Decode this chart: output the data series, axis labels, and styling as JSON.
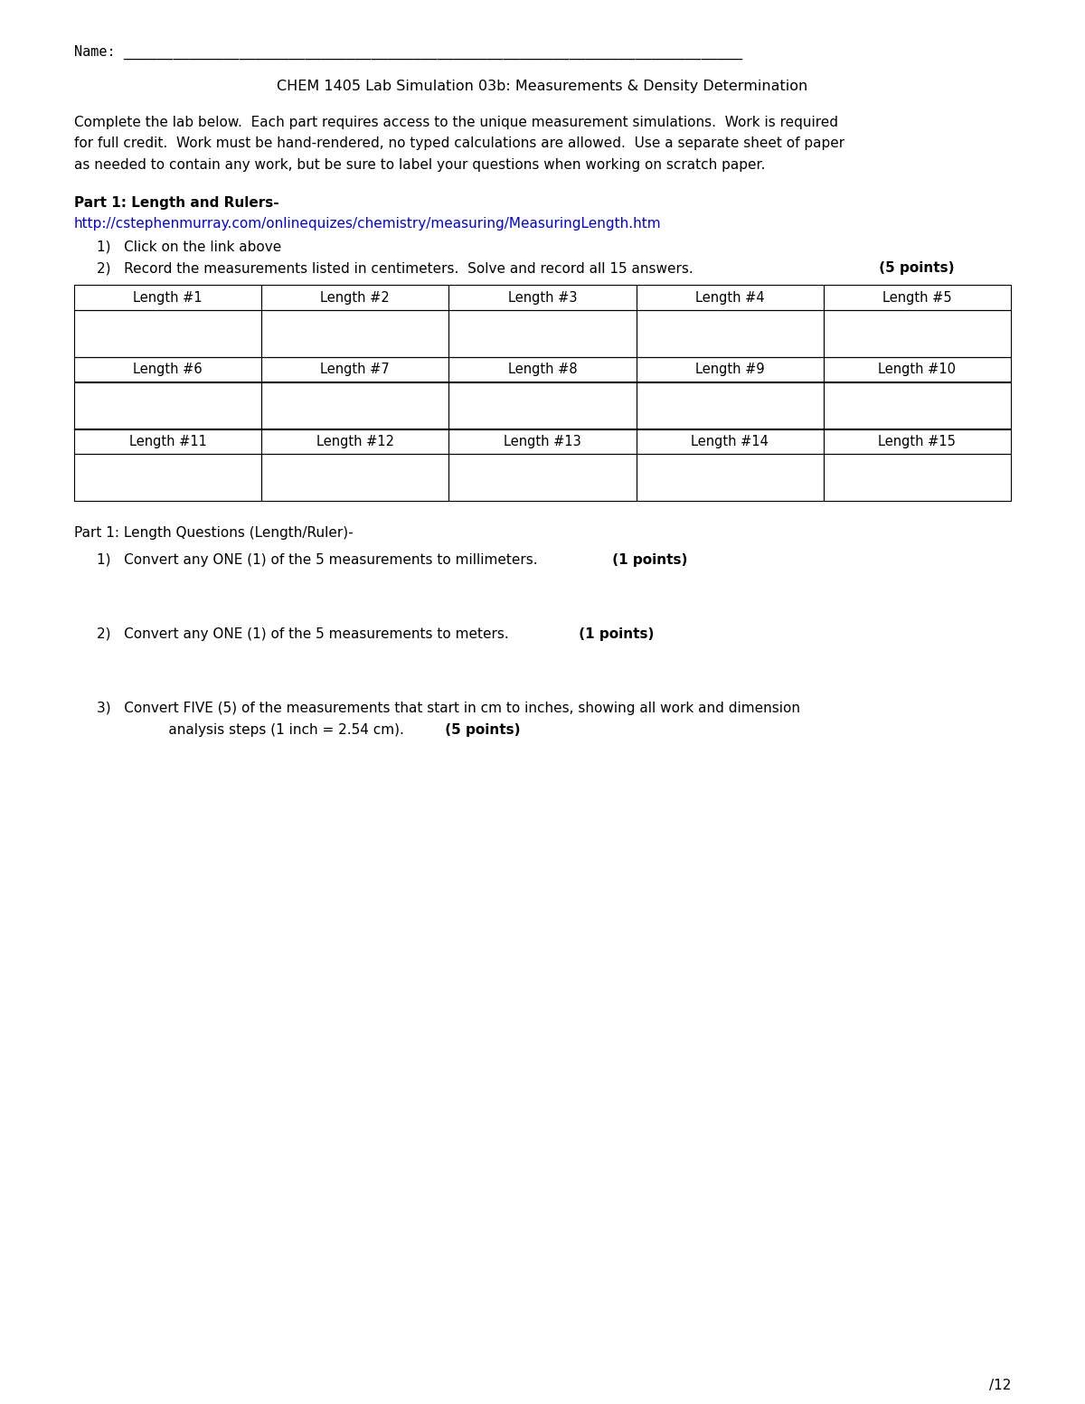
{
  "bg_color": "#ffffff",
  "title": "CHEM 1405 Lab Simulation 03b: Measurements & Density Determination",
  "name_label": "Name: ",
  "name_underline": "_______________________________________________________________________________________________________________",
  "intro_lines": [
    "Complete the lab below.  Each part requires access to the unique measurement simulations.  Work is required",
    "for full credit.  Work must be hand-rendered, no typed calculations are allowed.  Use a separate sheet of paper",
    "as needed to contain any work, but be sure to label your questions when working on scratch paper."
  ],
  "part1_header": "Part 1: Length and Rulers-",
  "part1_link": "http://cstephenmurray.com/onlinequizes/chemistry/measuring/MeasuringLength.htm",
  "instr1": "1)   Click on the link above",
  "instr2_normal": "2)   Record the measurements listed in centimeters.  Solve and record all 15 answers.",
  "instr2_bold": " (5 points)",
  "table_headers_row1": [
    "Length #1",
    "Length #2",
    "Length #3",
    "Length #4",
    "Length #5"
  ],
  "table_headers_row2": [
    "Length #6",
    "Length #7",
    "Length #8",
    "Length #9",
    "Length #10"
  ],
  "table_headers_row3": [
    "Length #11",
    "Length #12",
    "Length #13",
    "Length #14",
    "Length #15"
  ],
  "questions_header": "Part 1: Length Questions (Length/Ruler)-",
  "q1_normal": "1)   Convert any ONE (1) of the 5 measurements to millimeters.",
  "q1_bold": " (1 points)",
  "q2_normal": "2)   Convert any ONE (1) of the 5 measurements to meters.",
  "q2_bold": " (1 points)",
  "q3_line1_normal": "3)   Convert FIVE (5) of the measurements that start in cm to inches, showing all work and dimension",
  "q3_line2_normal": "     analysis steps (1 inch = 2.54 cm).",
  "q3_bold": " (5 points)",
  "footer": "/12",
  "text_color": "#000000",
  "link_color": "#0000EE",
  "font_size": 11.0,
  "font_size_title": 11.5
}
